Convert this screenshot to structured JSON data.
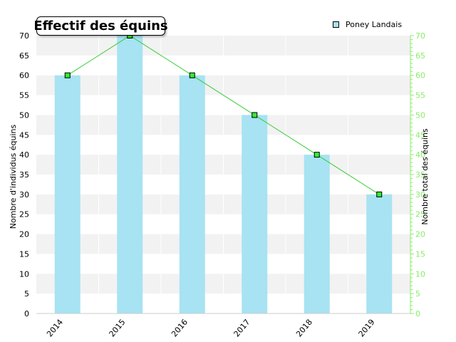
{
  "chart_data": {
    "type": "bar",
    "title": "Effectif des équins",
    "categories": [
      "2014",
      "2015",
      "2016",
      "2017",
      "2018",
      "2019"
    ],
    "series": [
      {
        "name": "Poney Landais",
        "type": "bar",
        "values": [
          60,
          70,
          60,
          50,
          40,
          30
        ],
        "color": "#a7e3f2"
      },
      {
        "type": "line",
        "values": [
          60,
          70,
          60,
          50,
          40,
          30
        ],
        "color": "#33cc33",
        "marker_color": "#33ee33",
        "axis": "right"
      }
    ],
    "ylabel": "Nombre d'individus équins",
    "ylabel_right": "Nombre total des équins",
    "ylim": [
      0,
      70
    ],
    "ylim_right": [
      0,
      70
    ],
    "yticks": [
      0,
      5,
      10,
      15,
      20,
      25,
      30,
      35,
      40,
      45,
      50,
      55,
      60,
      65,
      70
    ],
    "right_axis_color": "#88ee66",
    "grid": "horizontal bands",
    "legend_position": "top-right"
  }
}
